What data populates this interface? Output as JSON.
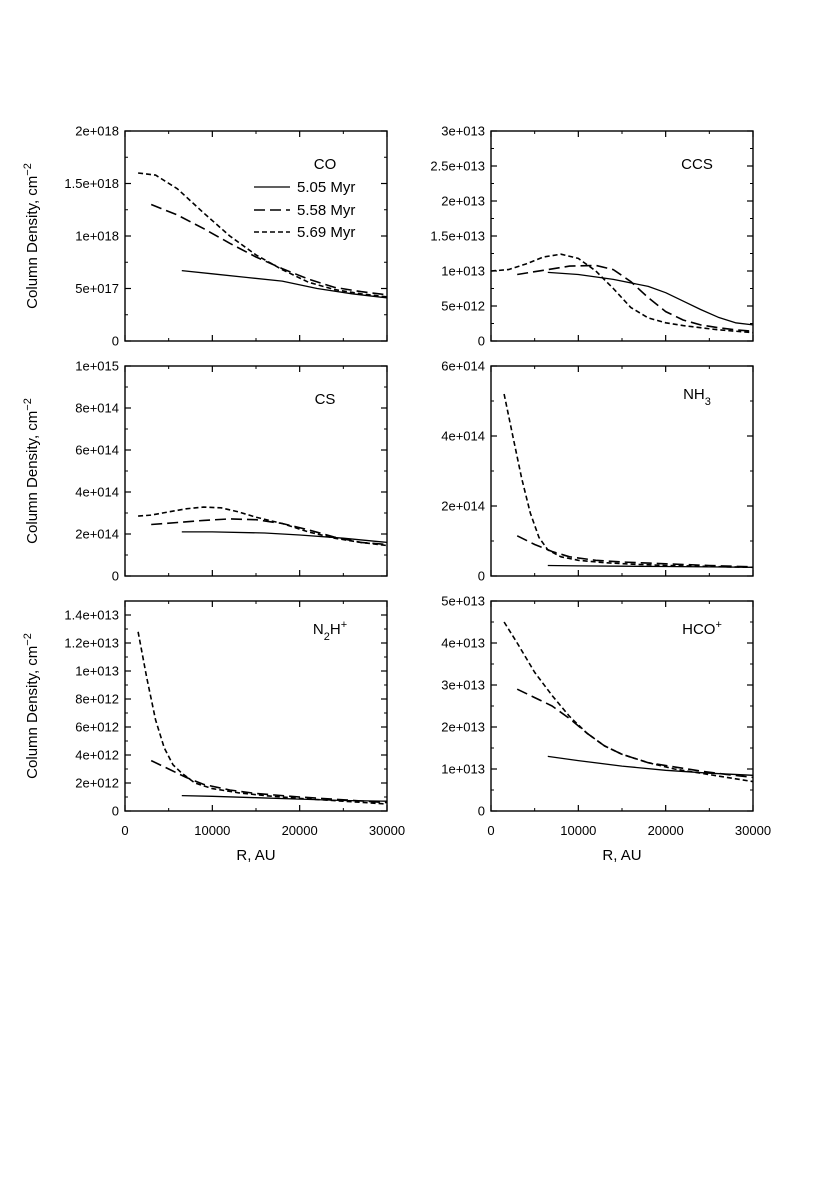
{
  "figure": {
    "ylabel": "Column Density, cm",
    "ylabel_exp": "−2",
    "xlabel": "R, AU"
  },
  "legend": [
    {
      "label": "5.05 Myr",
      "style": "solid"
    },
    {
      "label": "5.58 Myr",
      "style": "long-dash"
    },
    {
      "label": "5.69 Myr",
      "style": "short-dash"
    }
  ],
  "chart_data": [
    {
      "type": "line",
      "title": "CO",
      "title_parts": [
        {
          "t": "CO",
          "s": ""
        }
      ],
      "xlim": [
        0,
        30000
      ],
      "ylim": [
        0,
        2e+18
      ],
      "xticks": [
        0,
        10000,
        20000,
        30000
      ],
      "xtick_labels": [
        "0",
        "10000",
        "20000",
        "30000"
      ],
      "yticks": [
        0,
        5e+17,
        1e+18,
        1.5e+18,
        2e+18
      ],
      "ytick_labels": [
        "0",
        "5e+017",
        "1e+018",
        "1.5e+018",
        "2e+018"
      ],
      "series": [
        {
          "name": "5.05 Myr",
          "x": [
            6500,
            10000,
            14000,
            18000,
            22000,
            26000,
            30000
          ],
          "y": [
            6.7e+17,
            6.4e+17,
            6.05e+17,
            5.7e+17,
            5e+17,
            4.5e+17,
            4.1e+17
          ]
        },
        {
          "name": "5.58 Myr",
          "x": [
            3000,
            6000,
            9000,
            12000,
            15000,
            18000,
            21000,
            24000,
            27000,
            30000
          ],
          "y": [
            1.3e+18,
            1.2e+18,
            1.07e+18,
            9.3e+17,
            8e+17,
            6.9e+17,
            5.9e+17,
            5.1e+17,
            4.7e+17,
            4.4e+17
          ]
        },
        {
          "name": "5.69 Myr",
          "x": [
            1500,
            3500,
            6000,
            9000,
            12000,
            15000,
            18000,
            21000,
            24000,
            27000,
            30000
          ],
          "y": [
            1.6e+18,
            1.58e+18,
            1.45e+18,
            1.22e+18,
            1e+18,
            8.2e+17,
            6.8e+17,
            5.6e+17,
            4.9e+17,
            4.5e+17,
            4.2e+17
          ]
        }
      ]
    },
    {
      "type": "line",
      "title": "CCS",
      "title_parts": [
        {
          "t": "CCS",
          "s": ""
        }
      ],
      "xlim": [
        0,
        30000
      ],
      "ylim": [
        0,
        30000000000000.0
      ],
      "xticks": [
        0,
        10000,
        20000,
        30000
      ],
      "xtick_labels": [
        "0",
        "10000",
        "20000",
        "30000"
      ],
      "yticks": [
        0,
        5000000000000.0,
        10000000000000.0,
        15000000000000.0,
        20000000000000.0,
        25000000000000.0,
        30000000000000.0
      ],
      "ytick_labels": [
        "0",
        "5e+012",
        "1e+013",
        "1.5e+013",
        "2e+013",
        "2.5e+013",
        "3e+013"
      ],
      "series": [
        {
          "name": "5.05 Myr",
          "x": [
            6500,
            10000,
            14000,
            18000,
            20000,
            22000,
            24000,
            26000,
            28000,
            30000
          ],
          "y": [
            9800000000000.0,
            9500000000000.0,
            8800000000000.0,
            7800000000000.0,
            6900000000000.0,
            5700000000000.0,
            4500000000000.0,
            3400000000000.0,
            2600000000000.0,
            2300000000000.0
          ]
        },
        {
          "name": "5.58 Myr",
          "x": [
            3000,
            6000,
            9000,
            12000,
            14000,
            16000,
            18000,
            20000,
            22000,
            24000,
            26000,
            28000,
            30000
          ],
          "y": [
            9500000000000.0,
            10100000000000.0,
            10700000000000.0,
            10800000000000.0,
            10200000000000.0,
            8500000000000.0,
            6200000000000.0,
            4200000000000.0,
            3000000000000.0,
            2300000000000.0,
            1900000000000.0,
            1600000000000.0,
            1400000000000.0
          ]
        },
        {
          "name": "5.69 Myr",
          "x": [
            0,
            2000,
            4000,
            6000,
            8000,
            10000,
            12000,
            14000,
            16000,
            18000,
            20000,
            22000,
            24000,
            26000,
            28000,
            30000
          ],
          "y": [
            10000000000000.0,
            10200000000000.0,
            11000000000000.0,
            12000000000000.0,
            12400000000000.0,
            11800000000000.0,
            10000000000000.0,
            7500000000000.0,
            4800000000000.0,
            3300000000000.0,
            2600000000000.0,
            2200000000000.0,
            1900000000000.0,
            1600000000000.0,
            1400000000000.0,
            1200000000000.0
          ]
        }
      ]
    },
    {
      "type": "line",
      "title": "CS",
      "title_parts": [
        {
          "t": "CS",
          "s": ""
        }
      ],
      "xlim": [
        0,
        30000
      ],
      "ylim": [
        0,
        1000000000000000.0
      ],
      "xticks": [
        0,
        10000,
        20000,
        30000
      ],
      "xtick_labels": [
        "0",
        "10000",
        "20000",
        "30000"
      ],
      "yticks": [
        0,
        200000000000000.0,
        400000000000000.0,
        600000000000000.0,
        800000000000000.0,
        1000000000000000.0
      ],
      "ytick_labels": [
        "0",
        "2e+014",
        "4e+014",
        "6e+014",
        "8e+014",
        "1e+015"
      ],
      "series": [
        {
          "name": "5.05 Myr",
          "x": [
            6500,
            10000,
            16000,
            20000,
            25000,
            30000
          ],
          "y": [
            210000000000000.0,
            210000000000000.0,
            205000000000000.0,
            195000000000000.0,
            180000000000000.0,
            160000000000000.0
          ]
        },
        {
          "name": "5.58 Myr",
          "x": [
            3000,
            6000,
            9000,
            12000,
            15000,
            18000,
            21000,
            24000,
            27000,
            30000
          ],
          "y": [
            245000000000000.0,
            255000000000000.0,
            265000000000000.0,
            272000000000000.0,
            268000000000000.0,
            250000000000000.0,
            220000000000000.0,
            185000000000000.0,
            160000000000000.0,
            150000000000000.0
          ]
        },
        {
          "name": "5.69 Myr",
          "x": [
            1500,
            3000,
            5000,
            7000,
            9000,
            11000,
            13000,
            15000,
            18000,
            21000,
            24000,
            27000,
            30000
          ],
          "y": [
            285000000000000.0,
            290000000000000.0,
            305000000000000.0,
            320000000000000.0,
            328000000000000.0,
            325000000000000.0,
            305000000000000.0,
            280000000000000.0,
            250000000000000.0,
            210000000000000.0,
            180000000000000.0,
            160000000000000.0,
            145000000000000.0
          ]
        }
      ]
    },
    {
      "type": "line",
      "title": "NH3",
      "title_parts": [
        {
          "t": "NH",
          "s": ""
        },
        {
          "t": "3",
          "s": "sub"
        }
      ],
      "xlim": [
        0,
        30000
      ],
      "ylim": [
        0,
        600000000000000.0
      ],
      "xticks": [
        0,
        10000,
        20000,
        30000
      ],
      "xtick_labels": [
        "0",
        "10000",
        "20000",
        "30000"
      ],
      "yticks": [
        0,
        200000000000000.0,
        400000000000000.0,
        600000000000000.0
      ],
      "ytick_labels": [
        "0",
        "2e+014",
        "4e+014",
        "6e+014"
      ],
      "series": [
        {
          "name": "5.05 Myr",
          "x": [
            6500,
            10000,
            15000,
            20000,
            25000,
            30000
          ],
          "y": [
            30000000000000.0,
            29000000000000.0,
            28000000000000.0,
            27000000000000.0,
            26000000000000.0,
            25000000000000.0
          ]
        },
        {
          "name": "5.58 Myr",
          "x": [
            3000,
            5000,
            7000,
            9000,
            12000,
            15000,
            20000,
            25000,
            30000
          ],
          "y": [
            115000000000000.0,
            90000000000000.0,
            70000000000000.0,
            55000000000000.0,
            45000000000000.0,
            40000000000000.0,
            35000000000000.0,
            30000000000000.0,
            26000000000000.0
          ]
        },
        {
          "name": "5.69 Myr",
          "x": [
            1500,
            2500,
            3500,
            4500,
            5500,
            6500,
            8000,
            10000,
            13000,
            16000,
            20000,
            25000,
            30000
          ],
          "y": [
            520000000000000.0,
            400000000000000.0,
            280000000000000.0,
            180000000000000.0,
            110000000000000.0,
            75000000000000.0,
            55000000000000.0,
            45000000000000.0,
            38000000000000.0,
            34000000000000.0,
            30000000000000.0,
            27000000000000.0,
            25000000000000.0
          ]
        }
      ]
    },
    {
      "type": "line",
      "title": "N2H+",
      "title_parts": [
        {
          "t": "N",
          "s": ""
        },
        {
          "t": "2",
          "s": "sub"
        },
        {
          "t": "H",
          "s": ""
        },
        {
          "t": "+",
          "s": "sup"
        }
      ],
      "xlim": [
        0,
        30000
      ],
      "ylim": [
        0,
        15000000000000.0
      ],
      "xticks": [
        0,
        10000,
        20000,
        30000
      ],
      "xtick_labels": [
        "0",
        "10000",
        "20000",
        "30000"
      ],
      "yticks": [
        0,
        2000000000000.0,
        4000000000000.0,
        6000000000000.0,
        8000000000000.0,
        10000000000000.0,
        12000000000000.0,
        14000000000000.0
      ],
      "ytick_labels": [
        "0",
        "2e+012",
        "4e+012",
        "6e+012",
        "8e+012",
        "1e+013",
        "1.2e+013",
        "1.4e+013"
      ],
      "series": [
        {
          "name": "5.05 Myr",
          "x": [
            6500,
            10000,
            15000,
            20000,
            25000,
            30000
          ],
          "y": [
            1100000000000.0,
            1050000000000.0,
            950000000000.0,
            850000000000.0,
            750000000000.0,
            700000000000.0
          ]
        },
        {
          "name": "5.58 Myr",
          "x": [
            3000,
            5000,
            7000,
            9000,
            12000,
            15000,
            20000,
            25000,
            30000
          ],
          "y": [
            3600000000000.0,
            3000000000000.0,
            2400000000000.0,
            1900000000000.0,
            1500000000000.0,
            1250000000000.0,
            1000000000000.0,
            800000000000.0,
            600000000000.0
          ]
        },
        {
          "name": "5.69 Myr",
          "x": [
            1500,
            2500,
            3500,
            4500,
            5500,
            6500,
            8000,
            10000,
            13000,
            16000,
            20000,
            25000,
            30000
          ],
          "y": [
            12800000000000.0,
            9500000000000.0,
            6500000000000.0,
            4500000000000.0,
            3300000000000.0,
            2700000000000.0,
            2000000000000.0,
            1600000000000.0,
            1300000000000.0,
            1100000000000.0,
            900000000000.0,
            700000000000.0,
            500000000000.0
          ]
        }
      ]
    },
    {
      "type": "line",
      "title": "HCO+",
      "title_parts": [
        {
          "t": "HCO",
          "s": ""
        },
        {
          "t": "+",
          "s": "sup"
        }
      ],
      "xlim": [
        0,
        30000
      ],
      "ylim": [
        0,
        50000000000000.0
      ],
      "xticks": [
        0,
        10000,
        20000,
        30000
      ],
      "xtick_labels": [
        "0",
        "10000",
        "20000",
        "30000"
      ],
      "yticks": [
        0,
        10000000000000.0,
        20000000000000.0,
        30000000000000.0,
        40000000000000.0,
        50000000000000.0
      ],
      "ytick_labels": [
        "0",
        "1e+013",
        "2e+013",
        "3e+013",
        "4e+013",
        "5e+013"
      ],
      "series": [
        {
          "name": "5.05 Myr",
          "x": [
            6500,
            10000,
            15000,
            20000,
            25000,
            30000
          ],
          "y": [
            13000000000000.0,
            12000000000000.0,
            10700000000000.0,
            9700000000000.0,
            9000000000000.0,
            8500000000000.0
          ]
        },
        {
          "name": "5.58 Myr",
          "x": [
            3000,
            5000,
            7000,
            9000,
            11000,
            13000,
            15000,
            18000,
            21000,
            24000,
            27000,
            30000
          ],
          "y": [
            29000000000000.0,
            27000000000000.0,
            25000000000000.0,
            22000000000000.0,
            18500000000000.0,
            15500000000000.0,
            13500000000000.0,
            11500000000000.0,
            10500000000000.0,
            9500000000000.0,
            8700000000000.0,
            8000000000000.0
          ]
        },
        {
          "name": "5.69 Myr",
          "x": [
            1500,
            3000,
            5000,
            7000,
            9000,
            11000,
            13000,
            15000,
            18000,
            21000,
            24000,
            27000,
            30000
          ],
          "y": [
            45000000000000.0,
            40000000000000.0,
            33000000000000.0,
            27500000000000.0,
            22500000000000.0,
            18500000000000.0,
            15500000000000.0,
            13500000000000.0,
            11500000000000.0,
            10000000000000.0,
            9000000000000.0,
            8000000000000.0,
            7000000000000.0
          ]
        }
      ]
    }
  ]
}
